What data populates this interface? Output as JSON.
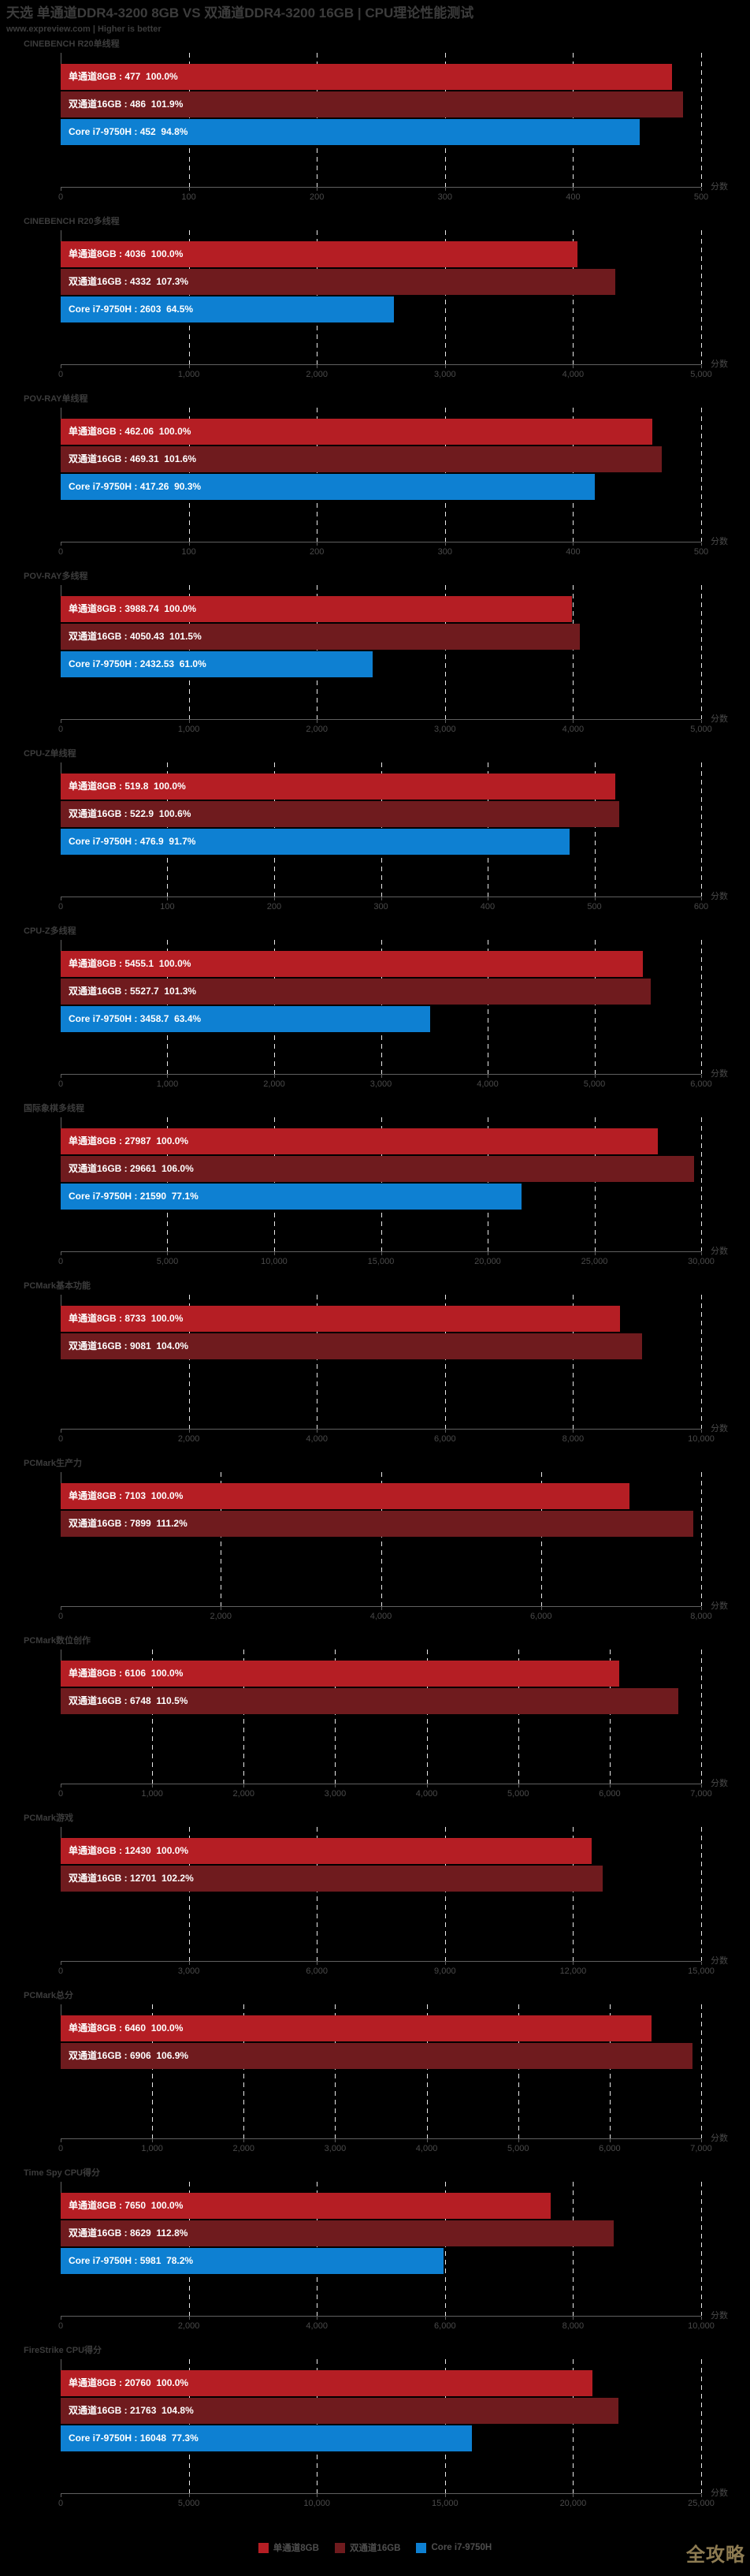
{
  "header": {
    "title": "天选 单通道DDR4-3200 8GB VS 双通道DDR4-3200 16GB | CPU理论性能测试",
    "subtitle": "www.expreview.com | Higher is better"
  },
  "colors": {
    "single_channel": "#b51e24",
    "dual_channel": "#6f1b1e",
    "core_i7": "#0e80d2",
    "background": "#000000",
    "heading_text": "#3c3c3c",
    "axis_text": "#4a4a4a",
    "bar_label_text": "#ffffff",
    "gridline": "#e8e8e8",
    "watermark": "#8d7b52"
  },
  "legend": {
    "items": [
      {
        "label": "单通道8GB",
        "color_key": "single_channel"
      },
      {
        "label": "双通道16GB",
        "color_key": "dual_channel"
      },
      {
        "label": "Core i7-9750H",
        "color_key": "core_i7"
      }
    ]
  },
  "watermark": "全攻略",
  "chart_data": [
    {
      "type": "bar",
      "title": "CINEBENCH R20单线程",
      "xlabel": "分数",
      "xlim": [
        0,
        500
      ],
      "ticks": [
        0,
        100,
        200,
        300,
        400,
        500
      ],
      "tick_labels": [
        "0",
        "100",
        "200",
        "300",
        "400",
        "500"
      ],
      "series": [
        {
          "name": "单通道8GB",
          "value": 477,
          "percent": "100.0%",
          "color_key": "single_channel",
          "label": "单通道8GB : 477  100.0%"
        },
        {
          "name": "双通道16GB",
          "value": 486,
          "percent": "101.9%",
          "color_key": "dual_channel",
          "label": "双通道16GB : 486  101.9%"
        },
        {
          "name": "Core i7-9750H",
          "value": 452,
          "percent": "94.8%",
          "color_key": "core_i7",
          "label": "Core i7-9750H : 452  94.8%"
        }
      ]
    },
    {
      "type": "bar",
      "title": "CINEBENCH R20多线程",
      "xlabel": "分数",
      "xlim": [
        0,
        5000
      ],
      "ticks": [
        0,
        1000,
        2000,
        3000,
        4000,
        5000
      ],
      "tick_labels": [
        "0",
        "1,000",
        "2,000",
        "3,000",
        "4,000",
        "5,000"
      ],
      "series": [
        {
          "name": "单通道8GB",
          "value": 4036,
          "percent": "100.0%",
          "color_key": "single_channel",
          "label": "单通道8GB : 4036  100.0%"
        },
        {
          "name": "双通道16GB",
          "value": 4332,
          "percent": "107.3%",
          "color_key": "dual_channel",
          "label": "双通道16GB : 4332  107.3%"
        },
        {
          "name": "Core i7-9750H",
          "value": 2603,
          "percent": "64.5%",
          "color_key": "core_i7",
          "label": "Core i7-9750H : 2603  64.5%"
        }
      ]
    },
    {
      "type": "bar",
      "title": "POV-RAY单线程",
      "xlabel": "分数",
      "xlim": [
        0,
        500
      ],
      "ticks": [
        0,
        100,
        200,
        300,
        400,
        500
      ],
      "tick_labels": [
        "0",
        "100",
        "200",
        "300",
        "400",
        "500"
      ],
      "series": [
        {
          "name": "单通道8GB",
          "value": 462.06,
          "percent": "100.0%",
          "color_key": "single_channel",
          "label": "单通道8GB : 462.06  100.0%"
        },
        {
          "name": "双通道16GB",
          "value": 469.31,
          "percent": "101.6%",
          "color_key": "dual_channel",
          "label": "双通道16GB : 469.31  101.6%"
        },
        {
          "name": "Core i7-9750H",
          "value": 417.26,
          "percent": "90.3%",
          "color_key": "core_i7",
          "label": "Core i7-9750H : 417.26  90.3%"
        }
      ]
    },
    {
      "type": "bar",
      "title": "POV-RAY多线程",
      "xlabel": "分数",
      "xlim": [
        0,
        5000
      ],
      "ticks": [
        0,
        1000,
        2000,
        3000,
        4000,
        5000
      ],
      "tick_labels": [
        "0",
        "1,000",
        "2,000",
        "3,000",
        "4,000",
        "5,000"
      ],
      "series": [
        {
          "name": "单通道8GB",
          "value": 3988.74,
          "percent": "100.0%",
          "color_key": "single_channel",
          "label": "单通道8GB : 3988.74  100.0%"
        },
        {
          "name": "双通道16GB",
          "value": 4050.43,
          "percent": "101.5%",
          "color_key": "dual_channel",
          "label": "双通道16GB : 4050.43  101.5%"
        },
        {
          "name": "Core i7-9750H",
          "value": 2432.53,
          "percent": "61.0%",
          "color_key": "core_i7",
          "label": "Core i7-9750H : 2432.53  61.0%"
        }
      ]
    },
    {
      "type": "bar",
      "title": "CPU-Z单线程",
      "xlabel": "分数",
      "xlim": [
        0,
        600
      ],
      "ticks": [
        0,
        100,
        200,
        300,
        400,
        500,
        600
      ],
      "tick_labels": [
        "0",
        "100",
        "200",
        "300",
        "400",
        "500",
        "600"
      ],
      "series": [
        {
          "name": "单通道8GB",
          "value": 519.8,
          "percent": "100.0%",
          "color_key": "single_channel",
          "label": "单通道8GB : 519.8  100.0%"
        },
        {
          "name": "双通道16GB",
          "value": 522.9,
          "percent": "100.6%",
          "color_key": "dual_channel",
          "label": "双通道16GB : 522.9  100.6%"
        },
        {
          "name": "Core i7-9750H",
          "value": 476.9,
          "percent": "91.7%",
          "color_key": "core_i7",
          "label": "Core i7-9750H : 476.9  91.7%"
        }
      ]
    },
    {
      "type": "bar",
      "title": "CPU-Z多线程",
      "xlabel": "分数",
      "xlim": [
        0,
        6000
      ],
      "ticks": [
        0,
        1000,
        2000,
        3000,
        4000,
        5000,
        6000
      ],
      "tick_labels": [
        "0",
        "1,000",
        "2,000",
        "3,000",
        "4,000",
        "5,000",
        "6,000"
      ],
      "series": [
        {
          "name": "单通道8GB",
          "value": 5455.1,
          "percent": "100.0%",
          "color_key": "single_channel",
          "label": "单通道8GB : 5455.1  100.0%"
        },
        {
          "name": "双通道16GB",
          "value": 5527.7,
          "percent": "101.3%",
          "color_key": "dual_channel",
          "label": "双通道16GB : 5527.7  101.3%"
        },
        {
          "name": "Core i7-9750H",
          "value": 3458.7,
          "percent": "63.4%",
          "color_key": "core_i7",
          "label": "Core i7-9750H : 3458.7  63.4%"
        }
      ]
    },
    {
      "type": "bar",
      "title": "国际象棋多线程",
      "xlabel": "分数",
      "xlim": [
        0,
        30000
      ],
      "ticks": [
        0,
        5000,
        10000,
        15000,
        20000,
        25000,
        30000
      ],
      "tick_labels": [
        "0",
        "5,000",
        "10,000",
        "15,000",
        "20,000",
        "25,000",
        "30,000"
      ],
      "series": [
        {
          "name": "单通道8GB",
          "value": 27987,
          "percent": "100.0%",
          "color_key": "single_channel",
          "label": "单通道8GB : 27987  100.0%"
        },
        {
          "name": "双通道16GB",
          "value": 29661,
          "percent": "106.0%",
          "color_key": "dual_channel",
          "label": "双通道16GB : 29661  106.0%"
        },
        {
          "name": "Core i7-9750H",
          "value": 21590,
          "percent": "77.1%",
          "color_key": "core_i7",
          "label": "Core i7-9750H : 21590  77.1%"
        }
      ]
    },
    {
      "type": "bar",
      "title": "PCMark基本功能",
      "xlabel": "分数",
      "xlim": [
        0,
        10000
      ],
      "ticks": [
        0,
        2000,
        4000,
        6000,
        8000,
        10000
      ],
      "tick_labels": [
        "0",
        "2,000",
        "4,000",
        "6,000",
        "8,000",
        "10,000"
      ],
      "series": [
        {
          "name": "单通道8GB",
          "value": 8733,
          "percent": "100.0%",
          "color_key": "single_channel",
          "label": "单通道8GB : 8733  100.0%"
        },
        {
          "name": "双通道16GB",
          "value": 9081,
          "percent": "104.0%",
          "color_key": "dual_channel",
          "label": "双通道16GB : 9081  104.0%"
        }
      ]
    },
    {
      "type": "bar",
      "title": "PCMark生产力",
      "xlabel": "分数",
      "xlim": [
        0,
        8000
      ],
      "ticks": [
        0,
        2000,
        4000,
        6000,
        8000
      ],
      "tick_labels": [
        "0",
        "2,000",
        "4,000",
        "6,000",
        "8,000"
      ],
      "series": [
        {
          "name": "单通道8GB",
          "value": 7103,
          "percent": "100.0%",
          "color_key": "single_channel",
          "label": "单通道8GB : 7103  100.0%"
        },
        {
          "name": "双通道16GB",
          "value": 7899,
          "percent": "111.2%",
          "color_key": "dual_channel",
          "label": "双通道16GB : 7899  111.2%"
        }
      ]
    },
    {
      "type": "bar",
      "title": "PCMark数位创作",
      "xlabel": "分数",
      "xlim": [
        0,
        7000
      ],
      "ticks": [
        0,
        1000,
        2000,
        3000,
        4000,
        5000,
        6000,
        7000
      ],
      "tick_labels": [
        "0",
        "1,000",
        "2,000",
        "3,000",
        "4,000",
        "5,000",
        "6,000",
        "7,000"
      ],
      "series": [
        {
          "name": "单通道8GB",
          "value": 6106,
          "percent": "100.0%",
          "color_key": "single_channel",
          "label": "单通道8GB : 6106  100.0%"
        },
        {
          "name": "双通道16GB",
          "value": 6748,
          "percent": "110.5%",
          "color_key": "dual_channel",
          "label": "双通道16GB : 6748  110.5%"
        }
      ]
    },
    {
      "type": "bar",
      "title": "PCMark游戏",
      "xlabel": "分数",
      "xlim": [
        0,
        15000
      ],
      "ticks": [
        0,
        3000,
        6000,
        9000,
        12000,
        15000
      ],
      "tick_labels": [
        "0",
        "3,000",
        "6,000",
        "9,000",
        "12,000",
        "15,000"
      ],
      "series": [
        {
          "name": "单通道8GB",
          "value": 12430,
          "percent": "100.0%",
          "color_key": "single_channel",
          "label": "单通道8GB : 12430  100.0%"
        },
        {
          "name": "双通道16GB",
          "value": 12701,
          "percent": "102.2%",
          "color_key": "dual_channel",
          "label": "双通道16GB : 12701  102.2%"
        }
      ]
    },
    {
      "type": "bar",
      "title": "PCMark总分",
      "xlabel": "分数",
      "xlim": [
        0,
        7000
      ],
      "ticks": [
        0,
        1000,
        2000,
        3000,
        4000,
        5000,
        6000,
        7000
      ],
      "tick_labels": [
        "0",
        "1,000",
        "2,000",
        "3,000",
        "4,000",
        "5,000",
        "6,000",
        "7,000"
      ],
      "series": [
        {
          "name": "单通道8GB",
          "value": 6460,
          "percent": "100.0%",
          "color_key": "single_channel",
          "label": "单通道8GB : 6460  100.0%"
        },
        {
          "name": "双通道16GB",
          "value": 6906,
          "percent": "106.9%",
          "color_key": "dual_channel",
          "label": "双通道16GB : 6906  106.9%"
        }
      ]
    },
    {
      "type": "bar",
      "title": "Time Spy CPU得分",
      "xlabel": "分数",
      "xlim": [
        0,
        10000
      ],
      "ticks": [
        0,
        2000,
        4000,
        6000,
        8000,
        10000
      ],
      "tick_labels": [
        "0",
        "2,000",
        "4,000",
        "6,000",
        "8,000",
        "10,000"
      ],
      "series": [
        {
          "name": "单通道8GB",
          "value": 7650,
          "percent": "100.0%",
          "color_key": "single_channel",
          "label": "单通道8GB : 7650  100.0%"
        },
        {
          "name": "双通道16GB",
          "value": 8629,
          "percent": "112.8%",
          "color_key": "dual_channel",
          "label": "双通道16GB : 8629  112.8%"
        },
        {
          "name": "Core i7-9750H",
          "value": 5981,
          "percent": "78.2%",
          "color_key": "core_i7",
          "label": "Core i7-9750H : 5981  78.2%"
        }
      ]
    },
    {
      "type": "bar",
      "title": "FireStrike CPU得分",
      "xlabel": "分数",
      "xlim": [
        0,
        25000
      ],
      "ticks": [
        0,
        5000,
        10000,
        15000,
        20000,
        25000
      ],
      "tick_labels": [
        "0",
        "5,000",
        "10,000",
        "15,000",
        "20,000",
        "25,000"
      ],
      "series": [
        {
          "name": "单通道8GB",
          "value": 20760,
          "percent": "100.0%",
          "color_key": "single_channel",
          "label": "单通道8GB : 20760  100.0%"
        },
        {
          "name": "双通道16GB",
          "value": 21763,
          "percent": "104.8%",
          "color_key": "dual_channel",
          "label": "双通道16GB : 21763  104.8%"
        },
        {
          "name": "Core i7-9750H",
          "value": 16048,
          "percent": "77.3%",
          "color_key": "core_i7",
          "label": "Core i7-9750H : 16048  77.3%"
        }
      ]
    }
  ]
}
